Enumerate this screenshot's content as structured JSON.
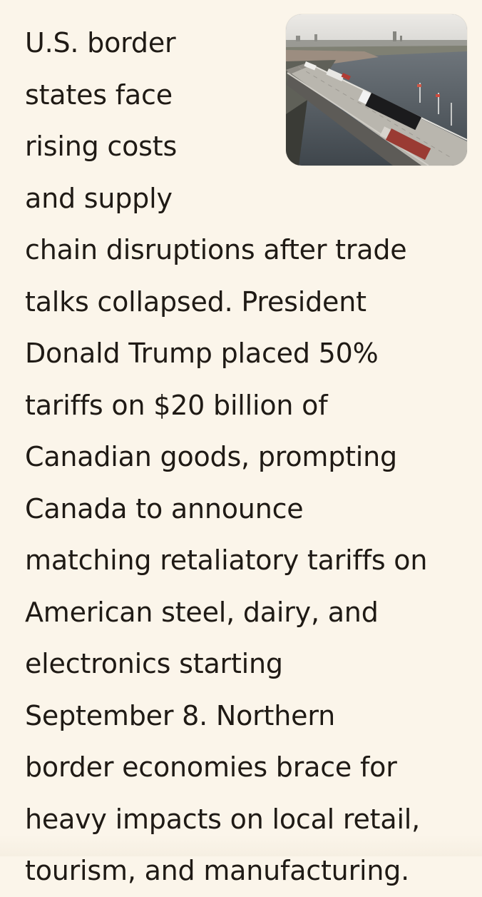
{
  "article": {
    "thumbnail_icon": "border-bridge-trucks-photo",
    "lines": [
      "U.S. border",
      "states face",
      "rising costs",
      "and supply",
      "chain disruptions after trade",
      "talks collapsed. President",
      "Donald Trump placed 50%",
      "tariffs on $20 billion of",
      "Canadian goods, prompting",
      "Canada to announce",
      "matching retaliatory tariffs on",
      "American steel, dairy, and",
      "electronics starting",
      "September 8. Northern",
      "border economies brace for",
      "heavy impacts on local retail,",
      "tourism, and manufacturing."
    ]
  }
}
